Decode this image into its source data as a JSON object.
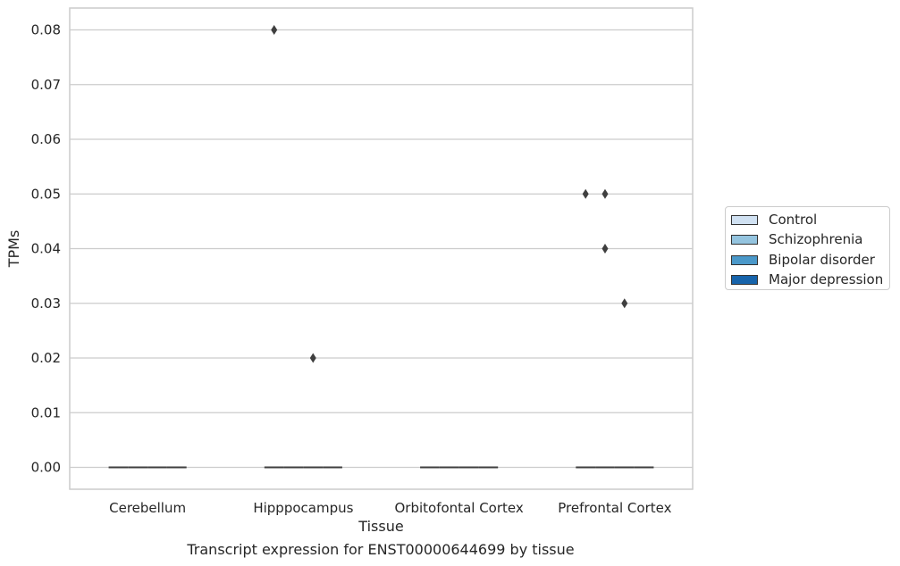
{
  "caption": "Transcript expression for ENST00000644699 by tissue",
  "chart_data": {
    "type": "box",
    "xlabel": "Tissue",
    "ylabel": "TPMs",
    "categories": [
      "Cerebellum",
      "Hipppocampus",
      "Orbitofontal Cortex",
      "Prefrontal Cortex"
    ],
    "ylim": [
      -0.004,
      0.084
    ],
    "yticks": [
      0.0,
      0.01,
      0.02,
      0.03,
      0.04,
      0.05,
      0.06,
      0.07,
      0.08
    ],
    "ytick_labels": [
      "0.00",
      "0.01",
      "0.02",
      "0.03",
      "0.04",
      "0.05",
      "0.06",
      "0.07",
      "0.08"
    ],
    "grid": true,
    "legend_position": "right",
    "series": [
      {
        "name": "Control",
        "color": "#d0e1f2",
        "boxes": [
          {
            "category": "Cerebellum",
            "median": 0.0
          },
          {
            "category": "Hipppocampus",
            "median": 0.0
          },
          {
            "category": "Orbitofontal Cortex",
            "median": 0.0
          },
          {
            "category": "Prefrontal Cortex",
            "median": 0.0
          }
        ],
        "outliers": [
          {
            "category": "Hipppocampus",
            "y": 0.08
          },
          {
            "category": "Prefrontal Cortex",
            "y": 0.05
          }
        ]
      },
      {
        "name": "Schizophrenia",
        "color": "#94c4df",
        "boxes": [
          {
            "category": "Cerebellum",
            "median": 0.0
          },
          {
            "category": "Hipppocampus",
            "median": 0.0
          },
          {
            "category": "Orbitofontal Cortex",
            "median": 0.0
          },
          {
            "category": "Prefrontal Cortex",
            "median": 0.0
          }
        ],
        "outliers": [
          {
            "category": "Prefrontal Cortex",
            "y": 0.05
          },
          {
            "category": "Prefrontal Cortex",
            "y": 0.04
          }
        ]
      },
      {
        "name": "Bipolar disorder",
        "color": "#4a98c9",
        "boxes": [
          {
            "category": "Cerebellum",
            "median": 0.0
          },
          {
            "category": "Hipppocampus",
            "median": 0.0
          },
          {
            "category": "Orbitofontal Cortex",
            "median": 0.0
          },
          {
            "category": "Prefrontal Cortex",
            "median": 0.0
          }
        ],
        "outliers": [
          {
            "category": "Hipppocampus",
            "y": 0.02
          },
          {
            "category": "Prefrontal Cortex",
            "y": 0.03
          }
        ]
      },
      {
        "name": "Major depression",
        "color": "#1764ab",
        "boxes": [
          {
            "category": "Cerebellum",
            "median": 0.0
          },
          {
            "category": "Hipppocampus",
            "median": 0.0
          },
          {
            "category": "Orbitofontal Cortex",
            "median": 0.0
          },
          {
            "category": "Prefrontal Cortex",
            "median": 0.0
          }
        ],
        "outliers": []
      }
    ]
  }
}
